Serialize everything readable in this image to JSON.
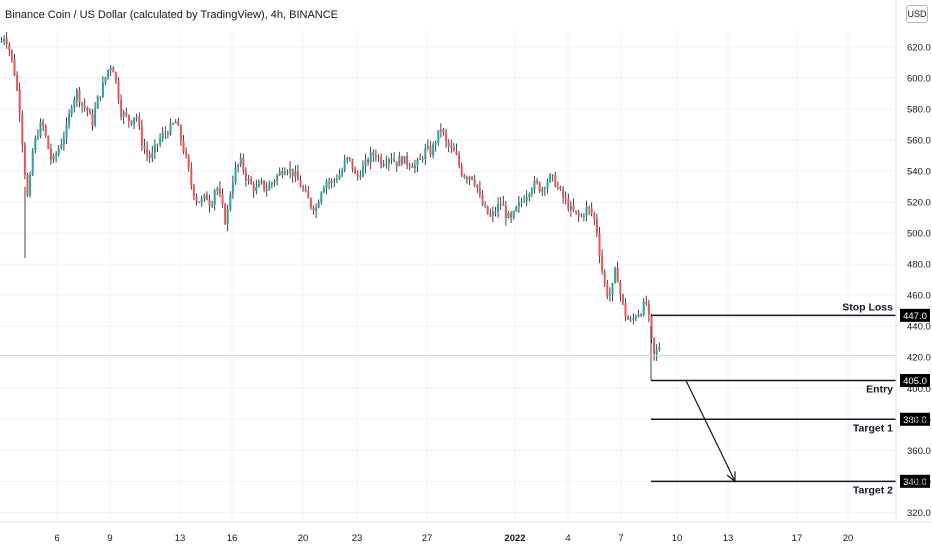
{
  "header": {
    "title": "Binance Coin / US Dollar (calculated by TradingView), 4h, BINANCE",
    "currency_button": "USD"
  },
  "colors": {
    "up": "#26a69a",
    "down": "#ef5350",
    "wick": "#131722",
    "grid": "#f0f3fa",
    "axis_text": "#131722",
    "line": "#131722"
  },
  "chart_data": {
    "type": "candlestick",
    "symbol": "BNBUSD",
    "interval": "4h",
    "exchange": "BINANCE",
    "y_axis": {
      "ylim": [
        312,
        650
      ],
      "ticks": [
        620.0,
        600.0,
        580.0,
        560.0,
        540.0,
        520.0,
        500.0,
        480.0,
        460.0,
        440.0,
        420.0,
        400.0,
        380.0,
        360.0,
        340.0,
        320.0
      ],
      "tick_labels": [
        "620.0",
        "600.0",
        "580.0",
        "560.0",
        "540.0",
        "520.0",
        "500.0",
        "480.0",
        "460.0",
        "440.0",
        "420.0",
        "400.0",
        "380.0",
        "360.0",
        "340.0",
        "320.0"
      ]
    },
    "x_axis": {
      "ticks": [
        {
          "label": "6",
          "bold": false
        },
        {
          "label": "9",
          "bold": false
        },
        {
          "label": "13",
          "bold": false
        },
        {
          "label": "16",
          "bold": false
        },
        {
          "label": "20",
          "bold": false
        },
        {
          "label": "23",
          "bold": false
        },
        {
          "label": "27",
          "bold": false
        },
        {
          "label": "2022",
          "bold": true
        },
        {
          "label": "4",
          "bold": false
        },
        {
          "label": "7",
          "bold": false
        },
        {
          "label": "10",
          "bold": false
        },
        {
          "label": "13",
          "bold": false
        },
        {
          "label": "17",
          "bold": false
        },
        {
          "label": "20",
          "bold": false
        }
      ]
    },
    "price_path": [
      [
        0,
        622
      ],
      [
        5,
        628
      ],
      [
        10,
        617
      ],
      [
        15,
        602
      ],
      [
        20,
        578
      ],
      [
        24,
        545
      ],
      [
        28,
        520
      ],
      [
        33,
        555
      ],
      [
        38,
        565
      ],
      [
        42,
        572
      ],
      [
        47,
        558
      ],
      [
        52,
        545
      ],
      [
        57,
        552
      ],
      [
        62,
        560
      ],
      [
        67,
        568
      ],
      [
        72,
        585
      ],
      [
        77,
        591
      ],
      [
        82,
        583
      ],
      [
        87,
        580
      ],
      [
        92,
        570
      ],
      [
        97,
        585
      ],
      [
        102,
        593
      ],
      [
        107,
        604
      ],
      [
        112,
        610
      ],
      [
        117,
        594
      ],
      [
        121,
        578
      ],
      [
        126,
        575
      ],
      [
        131,
        572
      ],
      [
        136,
        578
      ],
      [
        141,
        560
      ],
      [
        146,
        552
      ],
      [
        151,
        548
      ],
      [
        156,
        556
      ],
      [
        161,
        562
      ],
      [
        166,
        565
      ],
      [
        171,
        568
      ],
      [
        176,
        572
      ],
      [
        181,
        560
      ],
      [
        186,
        548
      ],
      [
        191,
        532
      ],
      [
        196,
        522
      ],
      [
        201,
        520
      ],
      [
        206,
        524
      ],
      [
        211,
        518
      ],
      [
        216,
        532
      ],
      [
        221,
        520
      ],
      [
        226,
        506
      ],
      [
        231,
        530
      ],
      [
        236,
        542
      ],
      [
        241,
        546
      ],
      [
        246,
        536
      ],
      [
        251,
        531
      ],
      [
        256,
        528
      ],
      [
        261,
        532
      ],
      [
        266,
        528
      ],
      [
        271,
        532
      ],
      [
        276,
        536
      ],
      [
        281,
        540
      ],
      [
        286,
        543
      ],
      [
        291,
        540
      ],
      [
        296,
        536
      ],
      [
        301,
        530
      ],
      [
        306,
        524
      ],
      [
        311,
        518
      ],
      [
        316,
        516
      ],
      [
        321,
        528
      ],
      [
        326,
        534
      ],
      [
        331,
        532
      ],
      [
        336,
        536
      ],
      [
        341,
        538
      ],
      [
        346,
        548
      ],
      [
        351,
        546
      ],
      [
        356,
        535
      ],
      [
        361,
        540
      ],
      [
        366,
        545
      ],
      [
        371,
        550
      ],
      [
        376,
        551
      ],
      [
        381,
        546
      ],
      [
        386,
        548
      ],
      [
        391,
        550
      ],
      [
        396,
        545
      ],
      [
        401,
        548
      ],
      [
        406,
        546
      ],
      [
        411,
        545
      ],
      [
        416,
        543
      ],
      [
        421,
        548
      ],
      [
        426,
        554
      ],
      [
        431,
        552
      ],
      [
        436,
        560
      ],
      [
        441,
        568
      ],
      [
        446,
        558
      ],
      [
        451,
        554
      ],
      [
        456,
        550
      ],
      [
        461,
        540
      ],
      [
        466,
        536
      ],
      [
        471,
        538
      ],
      [
        476,
        532
      ],
      [
        481,
        520
      ],
      [
        486,
        514
      ],
      [
        491,
        510
      ],
      [
        496,
        515
      ],
      [
        501,
        520
      ],
      [
        506,
        512
      ],
      [
        511,
        508
      ],
      [
        516,
        515
      ],
      [
        521,
        520
      ],
      [
        526,
        525
      ],
      [
        531,
        530
      ],
      [
        536,
        532
      ],
      [
        541,
        528
      ],
      [
        546,
        533
      ],
      [
        551,
        536
      ],
      [
        556,
        532
      ],
      [
        561,
        525
      ],
      [
        566,
        520
      ],
      [
        571,
        515
      ],
      [
        576,
        512
      ],
      [
        581,
        510
      ],
      [
        586,
        516
      ],
      [
        591,
        514
      ],
      [
        596,
        506
      ],
      [
        601,
        480
      ],
      [
        606,
        462
      ],
      [
        611,
        460
      ],
      [
        616,
        478
      ],
      [
        621,
        458
      ],
      [
        626,
        446
      ],
      [
        631,
        442
      ],
      [
        636,
        448
      ],
      [
        641,
        450
      ],
      [
        646,
        456
      ],
      [
        650,
        440
      ],
      [
        653,
        420
      ],
      [
        657,
        424
      ],
      [
        662,
        432
      ],
      [
        667,
        437
      ],
      [
        672,
        438
      ],
      [
        677,
        435
      ],
      [
        682,
        425
      ],
      [
        686,
        412
      ],
      [
        690,
        418
      ],
      [
        695,
        421
      ]
    ],
    "levels": [
      {
        "name": "stop_loss",
        "label": "Stop Loss",
        "price": 447.0,
        "price_label": "447.0"
      },
      {
        "name": "entry",
        "label": "Entry",
        "price": 405.0,
        "price_label": "405.0"
      },
      {
        "name": "target_1",
        "label": "Target 1",
        "price": 380.0,
        "price_label": "380.0"
      },
      {
        "name": "target_2",
        "label": "Target 2",
        "price": 340.0,
        "price_label": "340.0"
      }
    ],
    "current_price": 421.0,
    "projection_arrow": {
      "from_price": 405.0,
      "to_price": 340.0
    }
  }
}
